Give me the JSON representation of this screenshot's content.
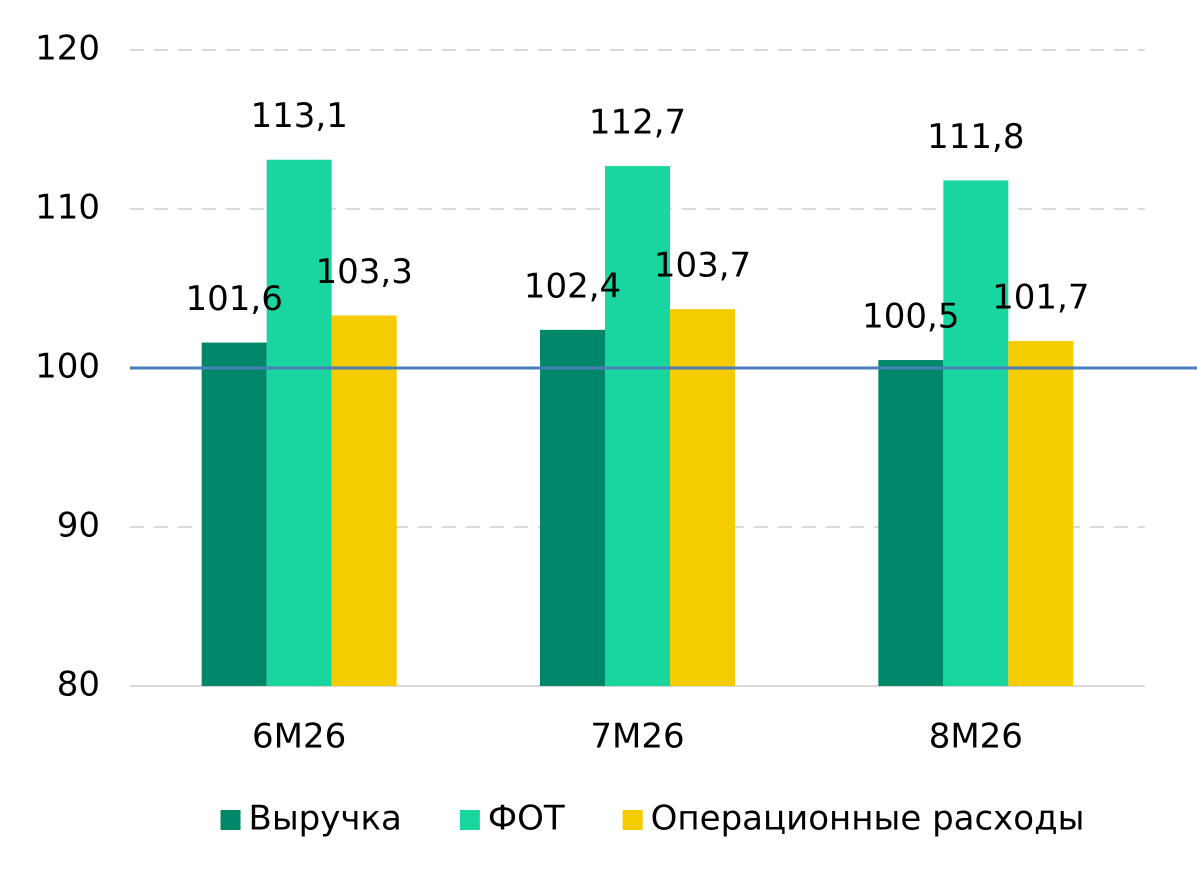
{
  "chart_data": {
    "type": "bar",
    "categories": [
      "6M26",
      "7M26",
      "8M26"
    ],
    "series": [
      {
        "name": "Выручка",
        "color": "#00876a",
        "values": [
          101.6,
          102.4,
          100.5
        ],
        "value_labels": [
          "101,6",
          "102,4",
          "100,5"
        ]
      },
      {
        "name": "ФОТ",
        "color": "#19d6a0",
        "values": [
          113.1,
          112.7,
          111.8
        ],
        "value_labels": [
          "113,1",
          "112,7",
          "111,8"
        ]
      },
      {
        "name": "Операционные расходы",
        "color": "#f5cc00",
        "values": [
          103.3,
          103.7,
          101.7
        ],
        "value_labels": [
          "103,3",
          "103,7",
          "101,7"
        ]
      }
    ],
    "ylim": [
      80,
      120
    ],
    "yticks": [
      80,
      90,
      100,
      110,
      120
    ],
    "grid": true,
    "reference_line": {
      "value": 100,
      "color": "#4a7ebb"
    },
    "legend": "bottom"
  }
}
